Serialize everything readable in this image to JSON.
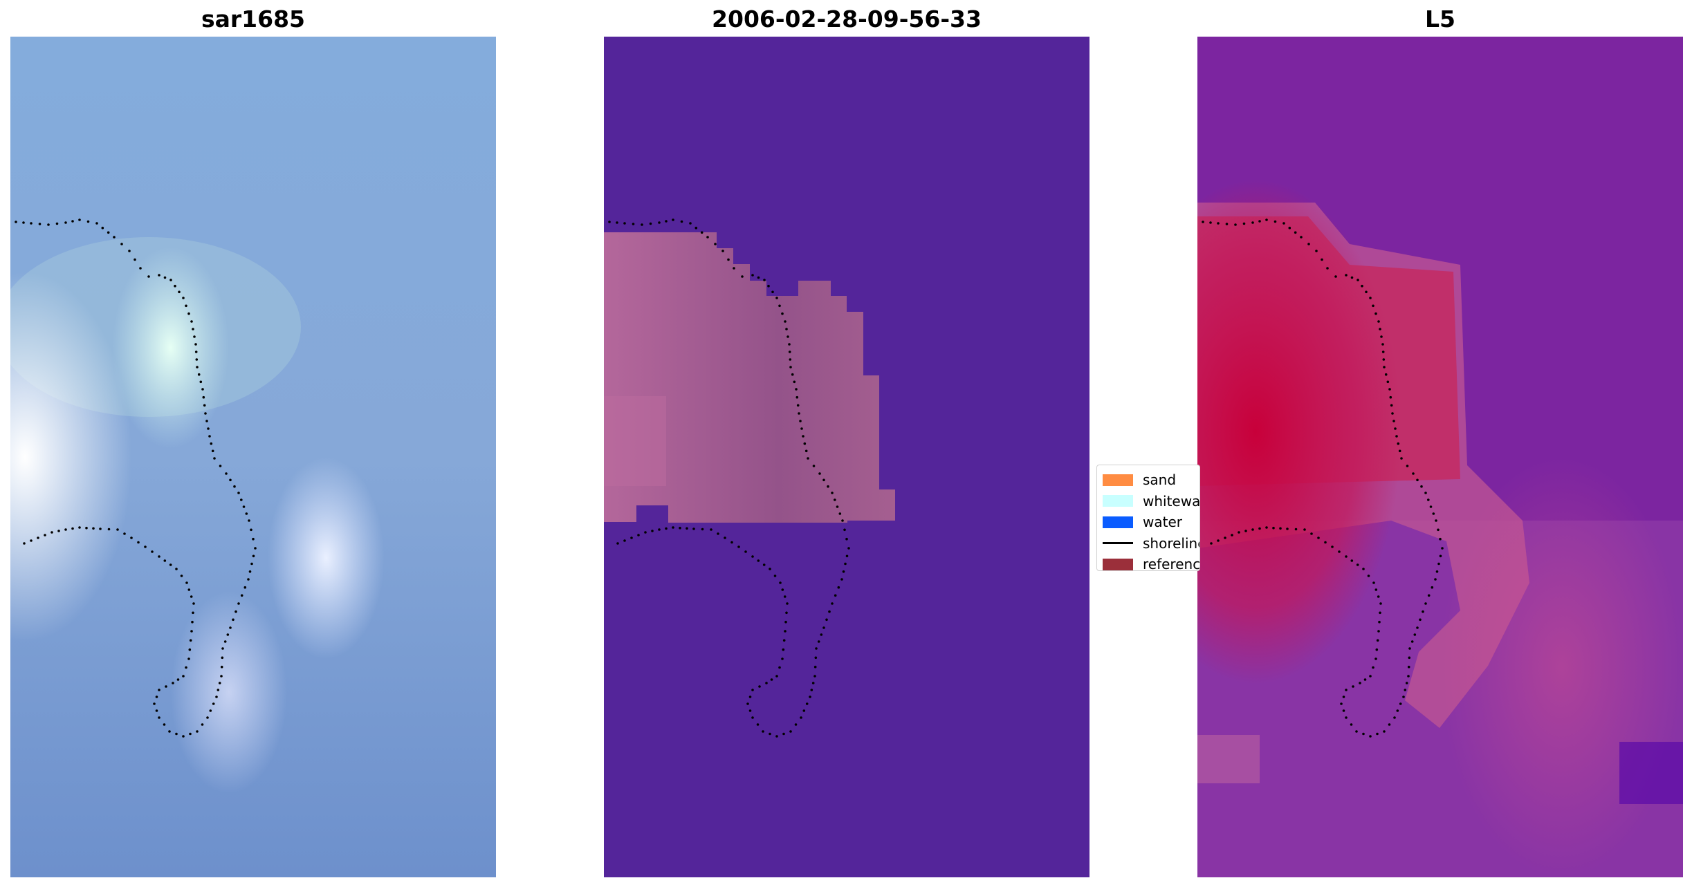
{
  "panels": [
    {
      "title": "sar1685"
    },
    {
      "title": "2006-02-28-09-56-33"
    },
    {
      "title": "L5"
    }
  ],
  "legend": {
    "items": [
      {
        "label": "sand",
        "color": "#ff8c42",
        "kind": "patch"
      },
      {
        "label": "whitewater",
        "color": "#c8ffff",
        "kind": "patch"
      },
      {
        "label": "water",
        "color": "#0a5cff",
        "kind": "patch"
      },
      {
        "label": "shoreline",
        "color": "#000000",
        "kind": "line"
      },
      {
        "label": "reference",
        "color": "#9b2f3a",
        "kind": "patch"
      }
    ]
  },
  "colors": {
    "background": "#ffffff",
    "classified_background": "#54259a",
    "classified_sand": "#8f4f86",
    "shoreline_points": "#000000"
  }
}
